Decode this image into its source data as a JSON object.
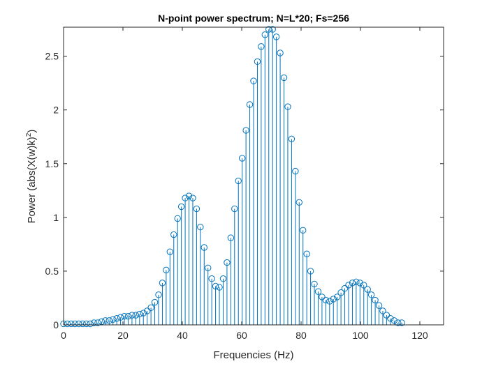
{
  "chart_data": {
    "type": "stem",
    "title": "N-point power spectrum; N=L*20; Fs=256",
    "xlabel": "Frequencies (Hz)",
    "ylabel_prefix": "Power (abs(X(w)k)",
    "ylabel_superscript": "2",
    "ylabel_suffix": ")",
    "xlim": [
      0,
      128
    ],
    "ylim": [
      0,
      2.77
    ],
    "xticks": [
      {
        "value": 0,
        "label": "0"
      },
      {
        "value": 20,
        "label": "20"
      },
      {
        "value": 40,
        "label": "40"
      },
      {
        "value": 60,
        "label": "60"
      },
      {
        "value": 80,
        "label": "80"
      },
      {
        "value": 100,
        "label": "100"
      },
      {
        "value": 120,
        "label": "120"
      }
    ],
    "yticks": [
      {
        "value": 0,
        "label": "0"
      },
      {
        "value": 0.5,
        "label": "0.5"
      },
      {
        "value": 1,
        "label": "1"
      },
      {
        "value": 1.5,
        "label": "1.5"
      },
      {
        "value": 2,
        "label": "2"
      },
      {
        "value": 2.5,
        "label": "2.5"
      }
    ],
    "grid": false,
    "color": "#0072BD",
    "x_start": 0,
    "x_step": 1.28,
    "values": [
      0.01,
      0.01,
      0.01,
      0.01,
      0.01,
      0.01,
      0.01,
      0.01,
      0.02,
      0.02,
      0.03,
      0.04,
      0.04,
      0.05,
      0.06,
      0.07,
      0.08,
      0.08,
      0.09,
      0.09,
      0.1,
      0.11,
      0.13,
      0.16,
      0.21,
      0.28,
      0.39,
      0.51,
      0.68,
      0.84,
      0.99,
      1.1,
      1.18,
      1.2,
      1.18,
      1.08,
      0.91,
      0.72,
      0.53,
      0.43,
      0.36,
      0.35,
      0.43,
      0.58,
      0.81,
      1.08,
      1.34,
      1.55,
      1.81,
      2.05,
      2.27,
      2.45,
      2.59,
      2.7,
      2.75,
      2.75,
      2.68,
      2.53,
      2.3,
      2.03,
      1.73,
      1.43,
      1.14,
      0.88,
      0.66,
      0.5,
      0.38,
      0.31,
      0.26,
      0.23,
      0.22,
      0.24,
      0.26,
      0.3,
      0.34,
      0.37,
      0.39,
      0.4,
      0.39,
      0.37,
      0.33,
      0.28,
      0.23,
      0.18,
      0.13,
      0.09,
      0.06,
      0.04,
      0.02,
      0.02
    ]
  }
}
